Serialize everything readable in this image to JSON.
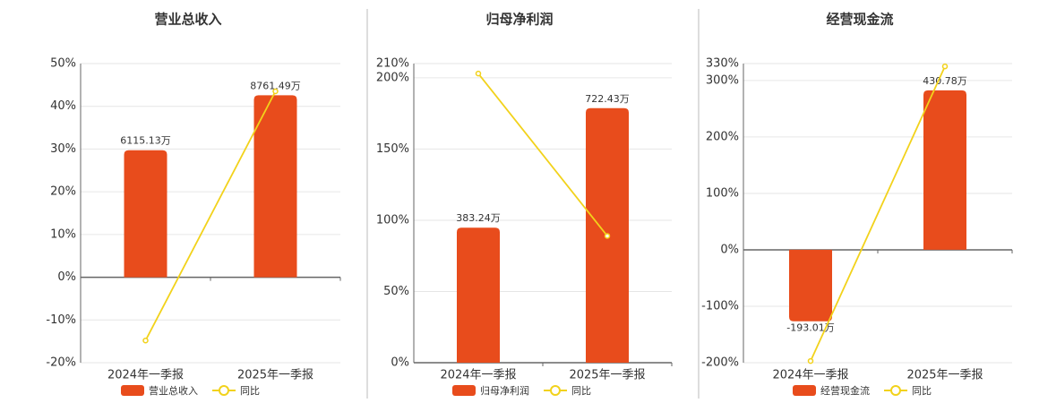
{
  "chart_data": [
    {
      "type": "bar",
      "title": "营业总收入",
      "categories": [
        "2024年一季报",
        "2025年一季报"
      ],
      "series": [
        {
          "name": "营业总收入",
          "type": "bar",
          "axis": "y2",
          "color": "#e84c1c",
          "values": [
            6115.13,
            8761.49
          ],
          "value_labels": [
            "6115.13万",
            "8761.49万"
          ]
        },
        {
          "name": "同比",
          "type": "line",
          "color": "#f2d21b",
          "values": [
            -14.8,
            43.5
          ]
        }
      ],
      "ylim": [
        -20,
        50
      ],
      "yticks": [
        {
          "value": -20,
          "label": "-20%"
        },
        {
          "value": -10,
          "label": "-10%"
        },
        {
          "value": 0,
          "label": "0%"
        },
        {
          "value": 10,
          "label": "10%"
        },
        {
          "value": 20,
          "label": "20%"
        },
        {
          "value": 30,
          "label": "30%"
        },
        {
          "value": 40,
          "label": "40%"
        },
        {
          "value": 50,
          "label": "50%"
        }
      ],
      "y2lim": [
        -4114,
        10285
      ],
      "grid": true
    },
    {
      "type": "bar",
      "title": "归母净利润",
      "categories": [
        "2024年一季报",
        "2025年一季报"
      ],
      "series": [
        {
          "name": "归母净利润",
          "type": "bar",
          "axis": "y2",
          "color": "#e84c1c",
          "values": [
            383.24,
            722.43
          ],
          "value_labels": [
            "383.24万",
            "722.43万"
          ]
        },
        {
          "name": "同比",
          "type": "line",
          "color": "#f2d21b",
          "values": [
            203,
            89
          ]
        }
      ],
      "ylim": [
        0,
        210
      ],
      "yticks": [
        {
          "value": 0,
          "label": "0%"
        },
        {
          "value": 50,
          "label": "50%"
        },
        {
          "value": 100,
          "label": "100%"
        },
        {
          "value": 150,
          "label": "150%"
        },
        {
          "value": 200,
          "label": "200%"
        },
        {
          "value": 210,
          "label": "210%"
        }
      ],
      "y2lim": [
        0,
        849
      ],
      "grid": true
    },
    {
      "type": "bar",
      "title": "经营现金流",
      "categories": [
        "2024年一季报",
        "2025年一季报"
      ],
      "series": [
        {
          "name": "经营现金流",
          "type": "bar",
          "axis": "y2",
          "color": "#e84c1c",
          "values": [
            -193.01,
            430.78
          ],
          "value_labels": [
            "-193.01万",
            "430.78万"
          ]
        },
        {
          "name": "同比",
          "type": "line",
          "color": "#f2d21b",
          "values": [
            -197,
            325
          ]
        }
      ],
      "ylim": [
        -200,
        330
      ],
      "yticks": [
        {
          "value": -200,
          "label": "-200%"
        },
        {
          "value": -100,
          "label": "-100%"
        },
        {
          "value": 0,
          "label": "0%"
        },
        {
          "value": 100,
          "label": "100%"
        },
        {
          "value": 200,
          "label": "200%"
        },
        {
          "value": 300,
          "label": "300%"
        },
        {
          "value": 330,
          "label": "330%"
        }
      ],
      "y2lim": [
        -305,
        503
      ],
      "grid": true
    }
  ]
}
